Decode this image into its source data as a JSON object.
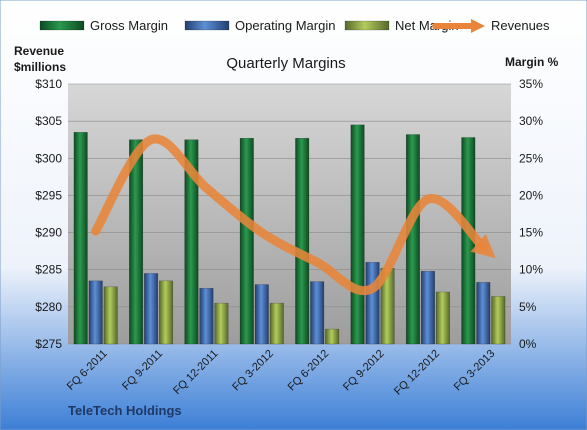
{
  "chart_data": {
    "type": "bar",
    "title": "Quarterly Margins",
    "categories": [
      "FQ 6-2011",
      "FQ 9-2011",
      "FQ 12-2011",
      "FQ 3-2012",
      "FQ 6-2012",
      "FQ 9-2012",
      "FQ 12-2012",
      "FQ 3-2013"
    ],
    "series": [
      {
        "name": "Gross Margin",
        "type": "bar",
        "axis": "right",
        "color": "#1e7b3c",
        "values": [
          28.5,
          27.5,
          27.5,
          27.7,
          27.7,
          29.5,
          28.2,
          27.8
        ]
      },
      {
        "name": "Operating Margin",
        "type": "bar",
        "axis": "right",
        "color": "#3d6db5",
        "values": [
          8.5,
          9.5,
          7.5,
          8.0,
          8.4,
          11.0,
          9.8,
          8.3
        ]
      },
      {
        "name": "Net Margin",
        "type": "bar",
        "axis": "right",
        "color": "#8faa3a",
        "values": [
          7.7,
          8.5,
          5.5,
          5.5,
          2.0,
          10.2,
          7.0,
          6.4
        ]
      },
      {
        "name": "Revenues",
        "type": "line",
        "axis": "left",
        "color": "#e8853a",
        "values": [
          290.2,
          302.5,
          296.0,
          290.0,
          286.0,
          282.5,
          294.5,
          288.0
        ]
      }
    ],
    "y_left": {
      "label_line1": "Revenue",
      "label_line2": "$millions",
      "min": 275,
      "max": 310,
      "step": 5,
      "ticks": [
        "$275",
        "$280",
        "$285",
        "$290",
        "$295",
        "$300",
        "$305",
        "$310"
      ]
    },
    "y_right": {
      "label": "Margin %",
      "min": 0,
      "max": 35,
      "step": 5,
      "ticks": [
        "0%",
        "5%",
        "10%",
        "15%",
        "20%",
        "25%",
        "30%",
        "35%"
      ]
    },
    "grid": true,
    "legend_position": "top"
  },
  "footer": {
    "company": "TeleTech Holdings"
  }
}
